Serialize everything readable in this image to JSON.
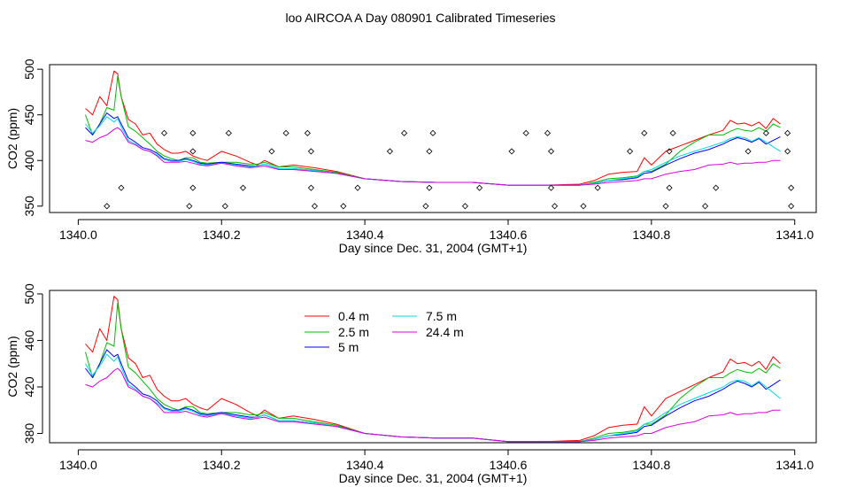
{
  "page": {
    "title": "loo AIRCOA A  Day 080901  Calibrated Timeseries"
  },
  "colors": {
    "0.4 m": "#ff0000",
    "2.5 m": "#00bb00",
    "5 m": "#0000ff",
    "7.5 m": "#00dddd",
    "24.4 m": "#dd00dd",
    "frame": "#000000",
    "markers": "#000000"
  },
  "chart_data": [
    {
      "type": "line",
      "panel": "top",
      "xlabel": "Day since Dec. 31, 2004 (GMT+1)",
      "ylabel": "CO2 (ppm)",
      "xlim": [
        1339.96,
        1341.03
      ],
      "ylim": [
        343,
        505
      ],
      "xticks": [
        1340.0,
        1340.2,
        1340.4,
        1340.6,
        1340.8,
        1341.0
      ],
      "xtick_labels": [
        "1340.0",
        "1340.2",
        "1340.4",
        "1340.6",
        "1340.8",
        "1341.0"
      ],
      "yticks": [
        350,
        400,
        450,
        500
      ],
      "ytick_labels": [
        "350",
        "400",
        "450",
        "500"
      ],
      "legend": null,
      "markers": {
        "name": "valve-state",
        "style": "open-diamond",
        "points": [
          [
            1340.04,
            350
          ],
          [
            1340.06,
            370
          ],
          [
            1340.12,
            430
          ],
          [
            1340.155,
            350
          ],
          [
            1340.16,
            370
          ],
          [
            1340.16,
            410
          ],
          [
            1340.16,
            430
          ],
          [
            1340.205,
            350
          ],
          [
            1340.21,
            430
          ],
          [
            1340.23,
            370
          ],
          [
            1340.27,
            410
          ],
          [
            1340.29,
            430
          ],
          [
            1340.32,
            430
          ],
          [
            1340.325,
            410
          ],
          [
            1340.325,
            370
          ],
          [
            1340.33,
            350
          ],
          [
            1340.37,
            350
          ],
          [
            1340.39,
            370
          ],
          [
            1340.435,
            410
          ],
          [
            1340.455,
            430
          ],
          [
            1340.485,
            350
          ],
          [
            1340.49,
            370
          ],
          [
            1340.49,
            410
          ],
          [
            1340.495,
            430
          ],
          [
            1340.54,
            350
          ],
          [
            1340.56,
            370
          ],
          [
            1340.605,
            410
          ],
          [
            1340.625,
            430
          ],
          [
            1340.655,
            430
          ],
          [
            1340.66,
            410
          ],
          [
            1340.66,
            370
          ],
          [
            1340.665,
            350
          ],
          [
            1340.705,
            350
          ],
          [
            1340.725,
            370
          ],
          [
            1340.77,
            410
          ],
          [
            1340.79,
            430
          ],
          [
            1340.82,
            350
          ],
          [
            1340.825,
            370
          ],
          [
            1340.825,
            410
          ],
          [
            1340.83,
            430
          ],
          [
            1340.875,
            350
          ],
          [
            1340.89,
            370
          ],
          [
            1340.935,
            410
          ],
          [
            1340.96,
            430
          ],
          [
            1340.99,
            430
          ],
          [
            1340.99,
            410
          ],
          [
            1340.995,
            370
          ],
          [
            1340.995,
            350
          ]
        ]
      },
      "x": [
        1340.01,
        1340.02,
        1340.03,
        1340.04,
        1340.05,
        1340.055,
        1340.06,
        1340.07,
        1340.08,
        1340.09,
        1340.1,
        1340.11,
        1340.12,
        1340.13,
        1340.14,
        1340.15,
        1340.16,
        1340.17,
        1340.18,
        1340.2,
        1340.22,
        1340.24,
        1340.25,
        1340.26,
        1340.28,
        1340.3,
        1340.33,
        1340.36,
        1340.4,
        1340.45,
        1340.5,
        1340.55,
        1340.6,
        1340.65,
        1340.7,
        1340.72,
        1340.74,
        1340.76,
        1340.78,
        1340.79,
        1340.8,
        1340.82,
        1340.84,
        1340.86,
        1340.88,
        1340.9,
        1340.91,
        1340.92,
        1340.93,
        1340.94,
        1340.95,
        1340.96,
        1340.97,
        1340.98
      ],
      "series": [
        {
          "name": "0.4 m",
          "values": [
            457,
            450,
            470,
            460,
            498,
            495,
            470,
            445,
            440,
            428,
            430,
            418,
            412,
            408,
            408,
            410,
            405,
            402,
            400,
            410,
            405,
            398,
            395,
            400,
            393,
            395,
            392,
            388,
            380,
            377,
            376,
            376,
            373,
            373,
            374,
            378,
            385,
            387,
            388,
            403,
            395,
            410,
            416,
            422,
            428,
            433,
            444,
            440,
            441,
            438,
            442,
            435,
            446,
            440
          ]
        },
        {
          "name": "2.5 m",
          "values": [
            450,
            428,
            440,
            458,
            455,
            492,
            470,
            437,
            432,
            425,
            418,
            410,
            405,
            402,
            400,
            403,
            403,
            398,
            397,
            398,
            398,
            396,
            396,
            398,
            393,
            393,
            390,
            387,
            380,
            377,
            376,
            376,
            373,
            373,
            373,
            376,
            380,
            381,
            383,
            388,
            388,
            396,
            410,
            420,
            428,
            428,
            432,
            435,
            433,
            432,
            436,
            432,
            440,
            436
          ]
        },
        {
          "name": "5 m",
          "values": [
            436,
            428,
            440,
            452,
            446,
            448,
            440,
            425,
            420,
            414,
            412,
            408,
            402,
            400,
            400,
            402,
            400,
            397,
            396,
            398,
            396,
            394,
            394,
            396,
            391,
            391,
            389,
            386,
            380,
            377,
            376,
            376,
            373,
            373,
            373,
            375,
            378,
            379,
            381,
            386,
            387,
            395,
            402,
            408,
            412,
            418,
            422,
            425,
            423,
            420,
            424,
            418,
            422,
            426
          ]
        },
        {
          "name": "7.5 m",
          "values": [
            440,
            430,
            438,
            448,
            442,
            446,
            437,
            422,
            418,
            412,
            410,
            406,
            401,
            399,
            399,
            401,
            399,
            396,
            395,
            397,
            395,
            393,
            394,
            396,
            391,
            391,
            389,
            386,
            380,
            377,
            376,
            376,
            373,
            373,
            373,
            375,
            378,
            380,
            382,
            388,
            390,
            398,
            405,
            410,
            415,
            420,
            424,
            426,
            425,
            421,
            425,
            420,
            415,
            410
          ]
        },
        {
          "name": "24.4 m",
          "values": [
            422,
            420,
            425,
            428,
            434,
            436,
            433,
            420,
            417,
            412,
            410,
            405,
            398,
            398,
            398,
            399,
            397,
            395,
            394,
            397,
            394,
            392,
            393,
            394,
            390,
            390,
            388,
            386,
            380,
            377,
            376,
            376,
            373,
            373,
            373,
            374,
            376,
            377,
            378,
            380,
            380,
            385,
            388,
            390,
            395,
            396,
            398,
            396,
            397,
            397,
            398,
            398,
            400,
            400
          ]
        }
      ]
    },
    {
      "type": "line",
      "panel": "bottom",
      "xlabel": "Day since Dec. 31, 2004 (GMT+1)",
      "ylabel": "CO2 (ppm)",
      "xlim": [
        1339.96,
        1341.03
      ],
      "ylim": [
        372,
        503
      ],
      "xticks": [
        1340.0,
        1340.2,
        1340.4,
        1340.6,
        1340.8,
        1341.0
      ],
      "xtick_labels": [
        "1340.0",
        "1340.2",
        "1340.4",
        "1340.6",
        "1340.8",
        "1341.0"
      ],
      "yticks": [
        380,
        420,
        460,
        500
      ],
      "ytick_labels": [
        "380",
        "420",
        "460",
        "500"
      ],
      "legend": {
        "placement": "top-left",
        "entries": [
          "0.4 m",
          "2.5 m",
          "5 m",
          "7.5 m",
          "24.4 m"
        ]
      },
      "same_series_as": "top"
    }
  ]
}
